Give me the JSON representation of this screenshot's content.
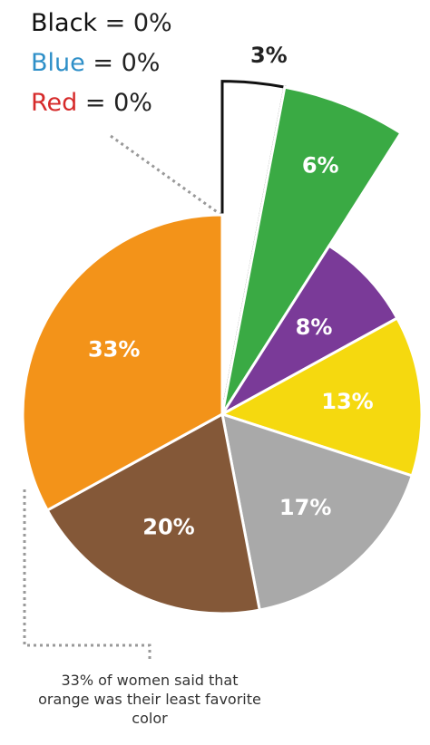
{
  "chart_data": {
    "type": "pie",
    "values": [
      3,
      6,
      8,
      13,
      17,
      20,
      33
    ],
    "value_labels": [
      "3%",
      "6%",
      "8%",
      "13%",
      "17%",
      "20%",
      "33%"
    ],
    "colors": [
      "#ffffff",
      "#3aaa44",
      "#7a3a98",
      "#f5d90f",
      "#a9a9a9",
      "#845838",
      "#f39319"
    ],
    "exploded": [
      true,
      true,
      false,
      false,
      false,
      false,
      false
    ],
    "zero_series": [
      {
        "name": "Black",
        "color": "#111111",
        "value": 0,
        "value_label": "0%"
      },
      {
        "name": "Blue",
        "color": "#2e8fc8",
        "value": 0,
        "value_label": "0%"
      },
      {
        "name": "Red",
        "color": "#d62a2a",
        "value": 0,
        "value_label": "0%"
      }
    ],
    "separator": "=",
    "annotation": "33% of women said that orange was their least favorite color"
  }
}
